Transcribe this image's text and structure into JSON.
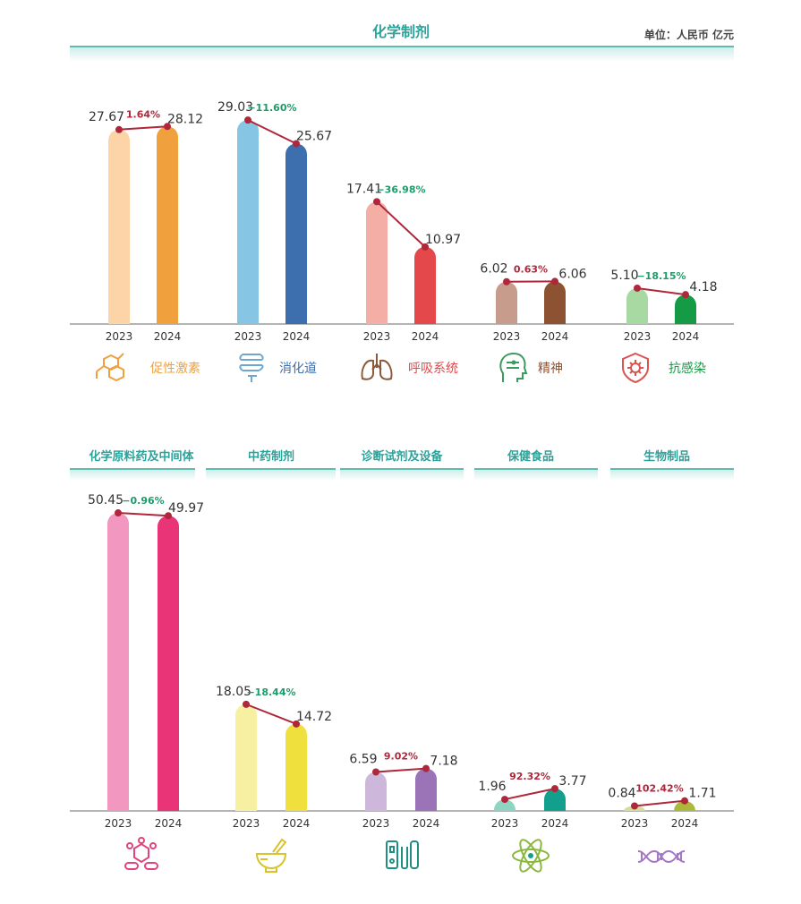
{
  "top": {
    "title": "化学制剂",
    "unit": "单位：人民币 亿元"
  },
  "bottom": {
    "titles": [
      "化学原料药及中间体",
      "中药制剂",
      "诊断试剂及设备",
      "保健食品",
      "生物制品"
    ]
  },
  "chart_data": [
    {
      "type": "bar",
      "title": "化学制剂",
      "x_labels": [
        "2023",
        "2024"
      ],
      "groups": [
        {
          "name": "促性激素",
          "values": [
            27.67,
            28.12
          ],
          "change": "1.64%",
          "colors": [
            "#fdd4a8",
            "#f0a03c"
          ],
          "change_color": "#b0263a",
          "icon": "hexagon-molecule-icon"
        },
        {
          "name": "消化道",
          "values": [
            29.03,
            25.67
          ],
          "change": "−11.60%",
          "colors": [
            "#86c5e3",
            "#3d6fae"
          ],
          "change_color": "#1f9a6a",
          "icon": "intestine-icon"
        },
        {
          "name": "呼吸系统",
          "values": [
            17.41,
            10.97
          ],
          "change": "−36.98%",
          "colors": [
            "#f4aea5",
            "#e5484a"
          ],
          "change_color": "#1f9a6a",
          "icon": "lungs-icon"
        },
        {
          "name": "精神",
          "values": [
            6.02,
            6.06
          ],
          "change": "0.63%",
          "colors": [
            "#c89c8c",
            "#8c5232"
          ],
          "change_color": "#b0263a",
          "icon": "head-icon"
        },
        {
          "name": "抗感染",
          "values": [
            5.1,
            4.18
          ],
          "change": "−18.15%",
          "colors": [
            "#a8d9a3",
            "#159a45"
          ],
          "change_color": "#1f9a6a",
          "icon": "shield-virus-icon"
        }
      ]
    },
    {
      "type": "bar",
      "x_labels": [
        "2023",
        "2024"
      ],
      "groups": [
        {
          "name": "化学原料药及中间体",
          "values": [
            50.45,
            49.97
          ],
          "change": "−0.96%",
          "colors": [
            "#f297bf",
            "#ea3478"
          ],
          "change_color": "#1f9a6a",
          "icon": "molecule-pills-icon"
        },
        {
          "name": "中药制剂",
          "values": [
            18.05,
            14.72
          ],
          "change": "−18.44%",
          "colors": [
            "#f7efa2",
            "#efe03e"
          ],
          "change_color": "#1f9a6a",
          "icon": "mortar-pestle-icon"
        },
        {
          "name": "诊断试剂及设备",
          "values": [
            6.59,
            7.18
          ],
          "change": "9.02%",
          "colors": [
            "#cdb8dc",
            "#9a74b6"
          ],
          "change_color": "#b0263a",
          "icon": "test-kit-icon"
        },
        {
          "name": "保健食品",
          "values": [
            1.96,
            3.77
          ],
          "change": "92.32%",
          "colors": [
            "#8fd3c2",
            "#12a08c"
          ],
          "change_color": "#b0263a",
          "icon": "atom-icon"
        },
        {
          "name": "生物制品",
          "values": [
            0.84,
            1.71
          ],
          "change": "102.42%",
          "colors": [
            "#d3dc9a",
            "#aab93a"
          ],
          "change_color": "#b0263a",
          "icon": "dna-icon"
        }
      ]
    }
  ]
}
